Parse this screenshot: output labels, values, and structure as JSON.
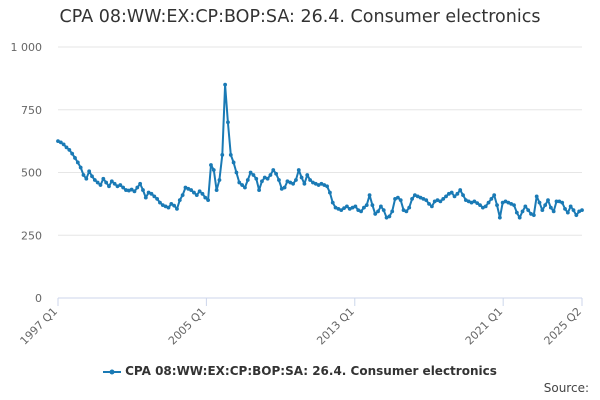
{
  "chart_data": {
    "type": "line",
    "title": "CPA 08:WW:EX:CP:BOP:SA: 26.4. Consumer electronics",
    "xlabel": "",
    "ylabel": "",
    "ylim": [
      0,
      1000
    ],
    "y_ticks": [
      0,
      250,
      500,
      750,
      1000
    ],
    "y_tick_labels": [
      "0",
      "250",
      "500",
      "750",
      "1 000"
    ],
    "x_tick_labels": [
      "1997 Q1",
      "2005 Q1",
      "2013 Q1",
      "2021 Q1",
      "2025 Q2"
    ],
    "grid": true,
    "legend_position": "bottom",
    "color": "#1a7ab5",
    "x_start": "1997 Q1",
    "x_end": "2025 Q2",
    "frequency": "monthly",
    "series": [
      {
        "name": "CPA 08:WW:EX:CP:BOP:SA: 26.4. Consumer electronics",
        "values": [
          625,
          620,
          612,
          600,
          590,
          575,
          558,
          540,
          520,
          490,
          475,
          505,
          485,
          470,
          460,
          450,
          475,
          460,
          445,
          465,
          455,
          445,
          450,
          440,
          430,
          428,
          432,
          425,
          440,
          455,
          430,
          400,
          420,
          415,
          405,
          395,
          380,
          370,
          365,
          360,
          375,
          368,
          355,
          390,
          410,
          440,
          435,
          430,
          420,
          410,
          425,
          415,
          400,
          390,
          530,
          510,
          430,
          470,
          570,
          850,
          700,
          570,
          540,
          500,
          460,
          450,
          440,
          470,
          500,
          490,
          475,
          430,
          465,
          480,
          475,
          490,
          510,
          495,
          470,
          435,
          440,
          465,
          460,
          455,
          470,
          510,
          480,
          455,
          490,
          470,
          460,
          455,
          450,
          455,
          450,
          445,
          420,
          380,
          360,
          355,
          350,
          358,
          365,
          355,
          360,
          365,
          350,
          345,
          360,
          370,
          410,
          370,
          335,
          345,
          365,
          350,
          320,
          325,
          345,
          395,
          400,
          390,
          350,
          345,
          360,
          395,
          410,
          405,
          400,
          395,
          390,
          375,
          365,
          385,
          390,
          385,
          395,
          405,
          415,
          420,
          405,
          415,
          430,
          410,
          390,
          385,
          380,
          385,
          378,
          370,
          360,
          365,
          380,
          395,
          410,
          370,
          320,
          380,
          385,
          380,
          375,
          370,
          340,
          320,
          345,
          365,
          350,
          335,
          330,
          405,
          380,
          350,
          370,
          390,
          360,
          345,
          385,
          385,
          380,
          355,
          340,
          365,
          350,
          330,
          345,
          350
        ]
      }
    ]
  },
  "legend": {
    "label": "CPA 08:WW:EX:CP:BOP:SA: 26.4. Consumer electronics"
  },
  "source": {
    "label": "Source:"
  }
}
